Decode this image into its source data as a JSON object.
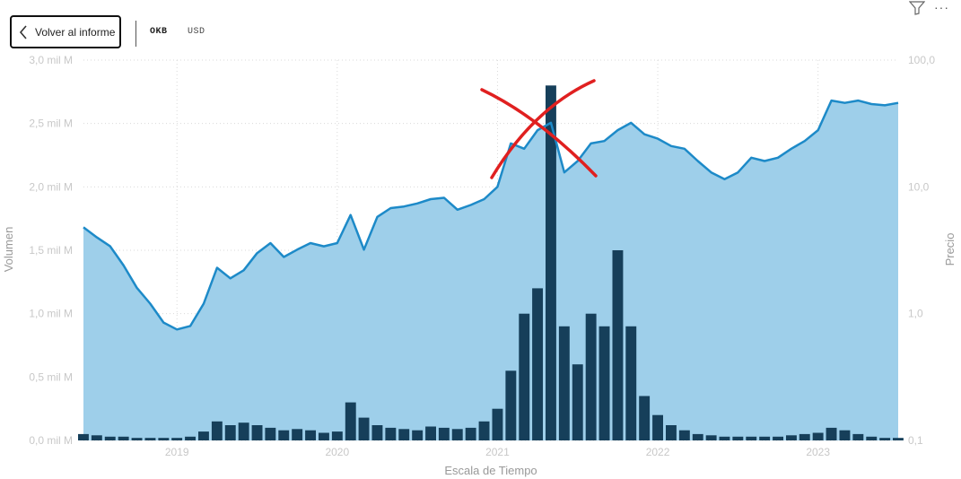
{
  "header": {
    "back_label": "Volver al informe",
    "ticker": "OKB",
    "currency": "USD"
  },
  "icons": {
    "back": "chevron-left-icon",
    "filter": "filter-icon",
    "more": "more-options-icon"
  },
  "colors": {
    "area_fill": "#9ecfea",
    "price_line": "#1d8ac8",
    "volume": "#163f5a",
    "gridline": "#d9d9d9",
    "annotation": "#e02020"
  },
  "chart_data": {
    "type": "area",
    "title": "",
    "xlabel": "Escala de Tiempo",
    "ylabel_left": "Volumen",
    "ylabel_right": "Precio",
    "x_ticks": [
      "2019",
      "2020",
      "2021",
      "2022",
      "2023"
    ],
    "y_left_ticks": [
      "0,0 mil M",
      "0,5 mil M",
      "1,0 mil M",
      "1,5 mil M",
      "2,0 mil M",
      "2,5 mil M",
      "3,0 mil M"
    ],
    "y_left_range": [
      0,
      3.0
    ],
    "y_right_ticks": [
      "0,1",
      "1,0",
      "10,0",
      "100,0"
    ],
    "y_right_range": [
      0.1,
      100
    ],
    "y_right_scale": "log",
    "x_range": [
      "2018-06",
      "2023-07"
    ],
    "grid": true,
    "series": [
      {
        "name": "Precio",
        "axis": "right",
        "style": "area-with-line",
        "points": [
          [
            "2018-06",
            4.8
          ],
          [
            "2018-07",
            4.0
          ],
          [
            "2018-08",
            3.4
          ],
          [
            "2018-09",
            2.4
          ],
          [
            "2018-10",
            1.6
          ],
          [
            "2018-11",
            1.2
          ],
          [
            "2018-12",
            0.85
          ],
          [
            "2019-01",
            0.75
          ],
          [
            "2019-02",
            0.8
          ],
          [
            "2019-03",
            1.2
          ],
          [
            "2019-04",
            2.3
          ],
          [
            "2019-05",
            1.9
          ],
          [
            "2019-06",
            2.2
          ],
          [
            "2019-07",
            3.0
          ],
          [
            "2019-08",
            3.6
          ],
          [
            "2019-09",
            2.8
          ],
          [
            "2019-10",
            3.2
          ],
          [
            "2019-11",
            3.6
          ],
          [
            "2019-12",
            3.4
          ],
          [
            "2020-01",
            3.6
          ],
          [
            "2020-02",
            6.0
          ],
          [
            "2020-03",
            3.2
          ],
          [
            "2020-04",
            5.8
          ],
          [
            "2020-05",
            6.8
          ],
          [
            "2020-06",
            7.0
          ],
          [
            "2020-07",
            7.4
          ],
          [
            "2020-08",
            8.0
          ],
          [
            "2020-09",
            8.2
          ],
          [
            "2020-10",
            6.6
          ],
          [
            "2020-11",
            7.2
          ],
          [
            "2020-12",
            8.0
          ],
          [
            "2021-01",
            10.0
          ],
          [
            "2021-02",
            22.0
          ],
          [
            "2021-03",
            20.0
          ],
          [
            "2021-04",
            28.0
          ],
          [
            "2021-05",
            32.0
          ],
          [
            "2021-06",
            13.0
          ],
          [
            "2021-07",
            16.0
          ],
          [
            "2021-08",
            22.0
          ],
          [
            "2021-09",
            23.0
          ],
          [
            "2021-10",
            28.0
          ],
          [
            "2021-11",
            32.0
          ],
          [
            "2021-12",
            26.0
          ],
          [
            "2022-01",
            24.0
          ],
          [
            "2022-02",
            21.0
          ],
          [
            "2022-03",
            20.0
          ],
          [
            "2022-04",
            16.0
          ],
          [
            "2022-05",
            13.0
          ],
          [
            "2022-06",
            11.5
          ],
          [
            "2022-07",
            13.0
          ],
          [
            "2022-08",
            17.0
          ],
          [
            "2022-09",
            16.0
          ],
          [
            "2022-10",
            17.0
          ],
          [
            "2022-11",
            20.0
          ],
          [
            "2022-12",
            23.0
          ],
          [
            "2023-01",
            28.0
          ],
          [
            "2023-02",
            48.0
          ],
          [
            "2023-03",
            46.0
          ],
          [
            "2023-04",
            48.0
          ],
          [
            "2023-05",
            45.0
          ],
          [
            "2023-06",
            44.0
          ],
          [
            "2023-07",
            46.0
          ]
        ]
      },
      {
        "name": "Volumen",
        "axis": "left",
        "style": "bars",
        "points": [
          [
            "2018-06",
            0.05
          ],
          [
            "2018-07",
            0.04
          ],
          [
            "2018-08",
            0.03
          ],
          [
            "2018-09",
            0.03
          ],
          [
            "2018-10",
            0.02
          ],
          [
            "2018-11",
            0.02
          ],
          [
            "2018-12",
            0.02
          ],
          [
            "2019-01",
            0.02
          ],
          [
            "2019-02",
            0.03
          ],
          [
            "2019-03",
            0.07
          ],
          [
            "2019-04",
            0.15
          ],
          [
            "2019-05",
            0.12
          ],
          [
            "2019-06",
            0.14
          ],
          [
            "2019-07",
            0.12
          ],
          [
            "2019-08",
            0.1
          ],
          [
            "2019-09",
            0.08
          ],
          [
            "2019-10",
            0.09
          ],
          [
            "2019-11",
            0.08
          ],
          [
            "2019-12",
            0.06
          ],
          [
            "2020-01",
            0.07
          ],
          [
            "2020-02",
            0.3
          ],
          [
            "2020-03",
            0.18
          ],
          [
            "2020-04",
            0.12
          ],
          [
            "2020-05",
            0.1
          ],
          [
            "2020-06",
            0.09
          ],
          [
            "2020-07",
            0.08
          ],
          [
            "2020-08",
            0.11
          ],
          [
            "2020-09",
            0.1
          ],
          [
            "2020-10",
            0.09
          ],
          [
            "2020-11",
            0.1
          ],
          [
            "2020-12",
            0.15
          ],
          [
            "2021-01",
            0.25
          ],
          [
            "2021-02",
            0.55
          ],
          [
            "2021-03",
            1.0
          ],
          [
            "2021-04",
            1.2
          ],
          [
            "2021-05",
            2.8
          ],
          [
            "2021-06",
            0.9
          ],
          [
            "2021-07",
            0.6
          ],
          [
            "2021-08",
            1.0
          ],
          [
            "2021-09",
            0.9
          ],
          [
            "2021-10",
            1.5
          ],
          [
            "2021-11",
            0.9
          ],
          [
            "2021-12",
            0.35
          ],
          [
            "2022-01",
            0.2
          ],
          [
            "2022-02",
            0.12
          ],
          [
            "2022-03",
            0.08
          ],
          [
            "2022-04",
            0.05
          ],
          [
            "2022-05",
            0.04
          ],
          [
            "2022-06",
            0.03
          ],
          [
            "2022-07",
            0.03
          ],
          [
            "2022-08",
            0.03
          ],
          [
            "2022-09",
            0.03
          ],
          [
            "2022-10",
            0.03
          ],
          [
            "2022-11",
            0.04
          ],
          [
            "2022-12",
            0.05
          ],
          [
            "2023-01",
            0.06
          ],
          [
            "2023-02",
            0.1
          ],
          [
            "2023-03",
            0.08
          ],
          [
            "2023-04",
            0.05
          ],
          [
            "2023-05",
            0.03
          ],
          [
            "2023-06",
            0.02
          ],
          [
            "2023-07",
            0.02
          ]
        ]
      }
    ]
  }
}
